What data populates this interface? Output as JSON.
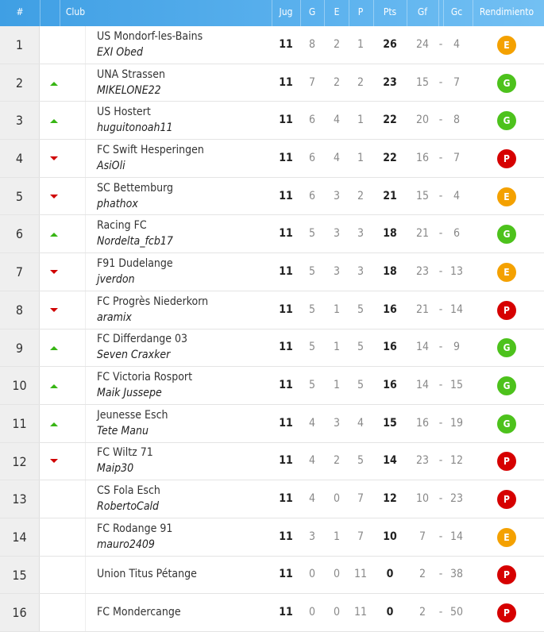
{
  "table": {
    "header": {
      "rank": "#",
      "club": "Club",
      "jug": "Jug",
      "g": "G",
      "e": "E",
      "p": "P",
      "pts": "Pts",
      "gf": "Gf",
      "gc": "Gc",
      "form": "Rendimiento"
    },
    "separator": "-",
    "rows": [
      {
        "rank": 1,
        "trend": null,
        "club": "US Mondorf-les-Bains",
        "manager": "EXI Obed",
        "jug": 11,
        "g": 8,
        "e": 2,
        "p": 1,
        "pts": 26,
        "gf": 24,
        "gc": 4,
        "form": "E"
      },
      {
        "rank": 2,
        "trend": "up",
        "club": "UNA Strassen",
        "manager": "MIKELONE22",
        "jug": 11,
        "g": 7,
        "e": 2,
        "p": 2,
        "pts": 23,
        "gf": 15,
        "gc": 7,
        "form": "G"
      },
      {
        "rank": 3,
        "trend": "up",
        "club": "US Hostert",
        "manager": "huguitonoah11",
        "jug": 11,
        "g": 6,
        "e": 4,
        "p": 1,
        "pts": 22,
        "gf": 20,
        "gc": 8,
        "form": "G"
      },
      {
        "rank": 4,
        "trend": "down",
        "club": "FC Swift Hesperingen",
        "manager": "AsiOli",
        "jug": 11,
        "g": 6,
        "e": 4,
        "p": 1,
        "pts": 22,
        "gf": 16,
        "gc": 7,
        "form": "P"
      },
      {
        "rank": 5,
        "trend": "down",
        "club": "SC Bettemburg",
        "manager": "phathox",
        "jug": 11,
        "g": 6,
        "e": 3,
        "p": 2,
        "pts": 21,
        "gf": 15,
        "gc": 4,
        "form": "E"
      },
      {
        "rank": 6,
        "trend": "up",
        "club": "Racing FC",
        "manager": "Nordelta_fcb17",
        "jug": 11,
        "g": 5,
        "e": 3,
        "p": 3,
        "pts": 18,
        "gf": 21,
        "gc": 6,
        "form": "G"
      },
      {
        "rank": 7,
        "trend": "down",
        "club": "F91 Dudelange",
        "manager": "jverdon",
        "jug": 11,
        "g": 5,
        "e": 3,
        "p": 3,
        "pts": 18,
        "gf": 23,
        "gc": 13,
        "form": "E"
      },
      {
        "rank": 8,
        "trend": "down",
        "club": "FC Progrès Niederkorn",
        "manager": "aramix",
        "jug": 11,
        "g": 5,
        "e": 1,
        "p": 5,
        "pts": 16,
        "gf": 21,
        "gc": 14,
        "form": "P"
      },
      {
        "rank": 9,
        "trend": "up",
        "club": "FC Differdange 03",
        "manager": "Seven Craxker",
        "jug": 11,
        "g": 5,
        "e": 1,
        "p": 5,
        "pts": 16,
        "gf": 14,
        "gc": 9,
        "form": "G"
      },
      {
        "rank": 10,
        "trend": "up",
        "club": "FC Victoria Rosport",
        "manager": "Maik Jussepe",
        "jug": 11,
        "g": 5,
        "e": 1,
        "p": 5,
        "pts": 16,
        "gf": 14,
        "gc": 15,
        "form": "G"
      },
      {
        "rank": 11,
        "trend": "up",
        "club": "Jeunesse Esch",
        "manager": "Tete Manu",
        "jug": 11,
        "g": 4,
        "e": 3,
        "p": 4,
        "pts": 15,
        "gf": 16,
        "gc": 19,
        "form": "G"
      },
      {
        "rank": 12,
        "trend": "down",
        "club": "FC Wiltz 71",
        "manager": "Maip30",
        "jug": 11,
        "g": 4,
        "e": 2,
        "p": 5,
        "pts": 14,
        "gf": 23,
        "gc": 12,
        "form": "P"
      },
      {
        "rank": 13,
        "trend": null,
        "club": "CS Fola Esch",
        "manager": "RobertoCald",
        "jug": 11,
        "g": 4,
        "e": 0,
        "p": 7,
        "pts": 12,
        "gf": 10,
        "gc": 23,
        "form": "P"
      },
      {
        "rank": 14,
        "trend": null,
        "club": "FC Rodange 91",
        "manager": "mauro2409",
        "jug": 11,
        "g": 3,
        "e": 1,
        "p": 7,
        "pts": 10,
        "gf": 7,
        "gc": 14,
        "form": "E"
      },
      {
        "rank": 15,
        "trend": null,
        "club": "Union Titus Pétange",
        "jug": 11,
        "g": 0,
        "e": 0,
        "p": 11,
        "pts": 0,
        "gf": 2,
        "gc": 38,
        "form": "P"
      },
      {
        "rank": 16,
        "trend": null,
        "club": "FC Mondercange",
        "jug": 11,
        "g": 0,
        "e": 0,
        "p": 11,
        "pts": 0,
        "gf": 2,
        "gc": 50,
        "form": "P"
      }
    ]
  }
}
